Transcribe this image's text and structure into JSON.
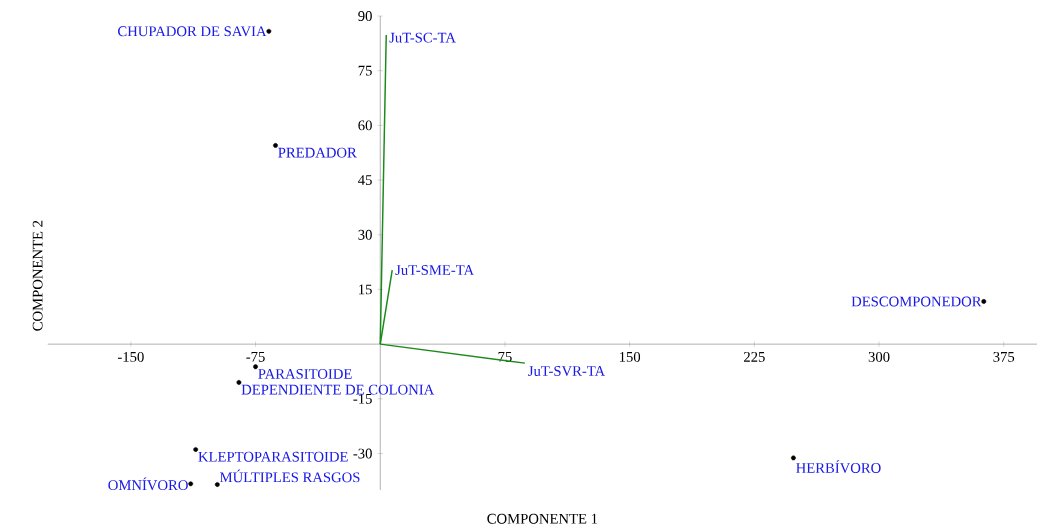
{
  "chart_data": {
    "type": "scatter",
    "xlabel": "COMPONENTE 1",
    "ylabel": "COMPONENTE 2",
    "xlim": [
      -200,
      395
    ],
    "ylim": [
      -40,
      90
    ],
    "xticks": [
      -150,
      -75,
      75,
      150,
      225,
      300,
      375
    ],
    "yticks": [
      -30,
      -15,
      15,
      30,
      45,
      60,
      75,
      90
    ],
    "series": [
      {
        "marker": "circle",
        "color": "#000000",
        "x": [
          -67,
          -63,
          363,
          248.5,
          -75,
          -85,
          -111,
          -114,
          -98
        ],
        "values": [
          85.8,
          54.5,
          11.7,
          -31.2,
          -6.2,
          -10.5,
          -28.9,
          -38.3,
          -38.5
        ]
      },
      {
        "type": "line",
        "name": "JuT-SC-TA",
        "marker": "none",
        "color": "#1a8a1a",
        "x": [
          0,
          3.6
        ],
        "values": [
          0,
          84.8
        ]
      },
      {
        "type": "line",
        "name": "JuT-SME-TA",
        "marker": "none",
        "color": "#1a8a1a",
        "x": [
          0,
          7.2
        ],
        "values": [
          0,
          20.3
        ]
      },
      {
        "type": "line",
        "name": "JuT-SVR-TA",
        "marker": "none",
        "color": "#1a8a1a",
        "x": [
          0,
          87
        ],
        "values": [
          0,
          -5.2
        ]
      }
    ],
    "annotations": [
      {
        "text": "CHUPADOR DE SAVIA",
        "x": -67,
        "y": 85.8
      },
      {
        "text": "PREDADOR",
        "x": -63,
        "y": 54.5
      },
      {
        "text": "DESCOMPONEDOR",
        "x": 363,
        "y": 11.7
      },
      {
        "text": "HERBÍVORO",
        "x": 248.5,
        "y": -31.2
      },
      {
        "text": "PARASITOIDE",
        "x": -75,
        "y": -6.2
      },
      {
        "text": "DEPENDIENTE DE COLONIA",
        "x": -85,
        "y": -10.5
      },
      {
        "text": "KLEPTOPARASITOIDE",
        "x": -111,
        "y": -28.9
      },
      {
        "text": "OMNÍVORO",
        "x": -114,
        "y": -38.3
      },
      {
        "text": "MÚLTIPLES RASGOS",
        "x": -98,
        "y": -38.5
      }
    ]
  }
}
